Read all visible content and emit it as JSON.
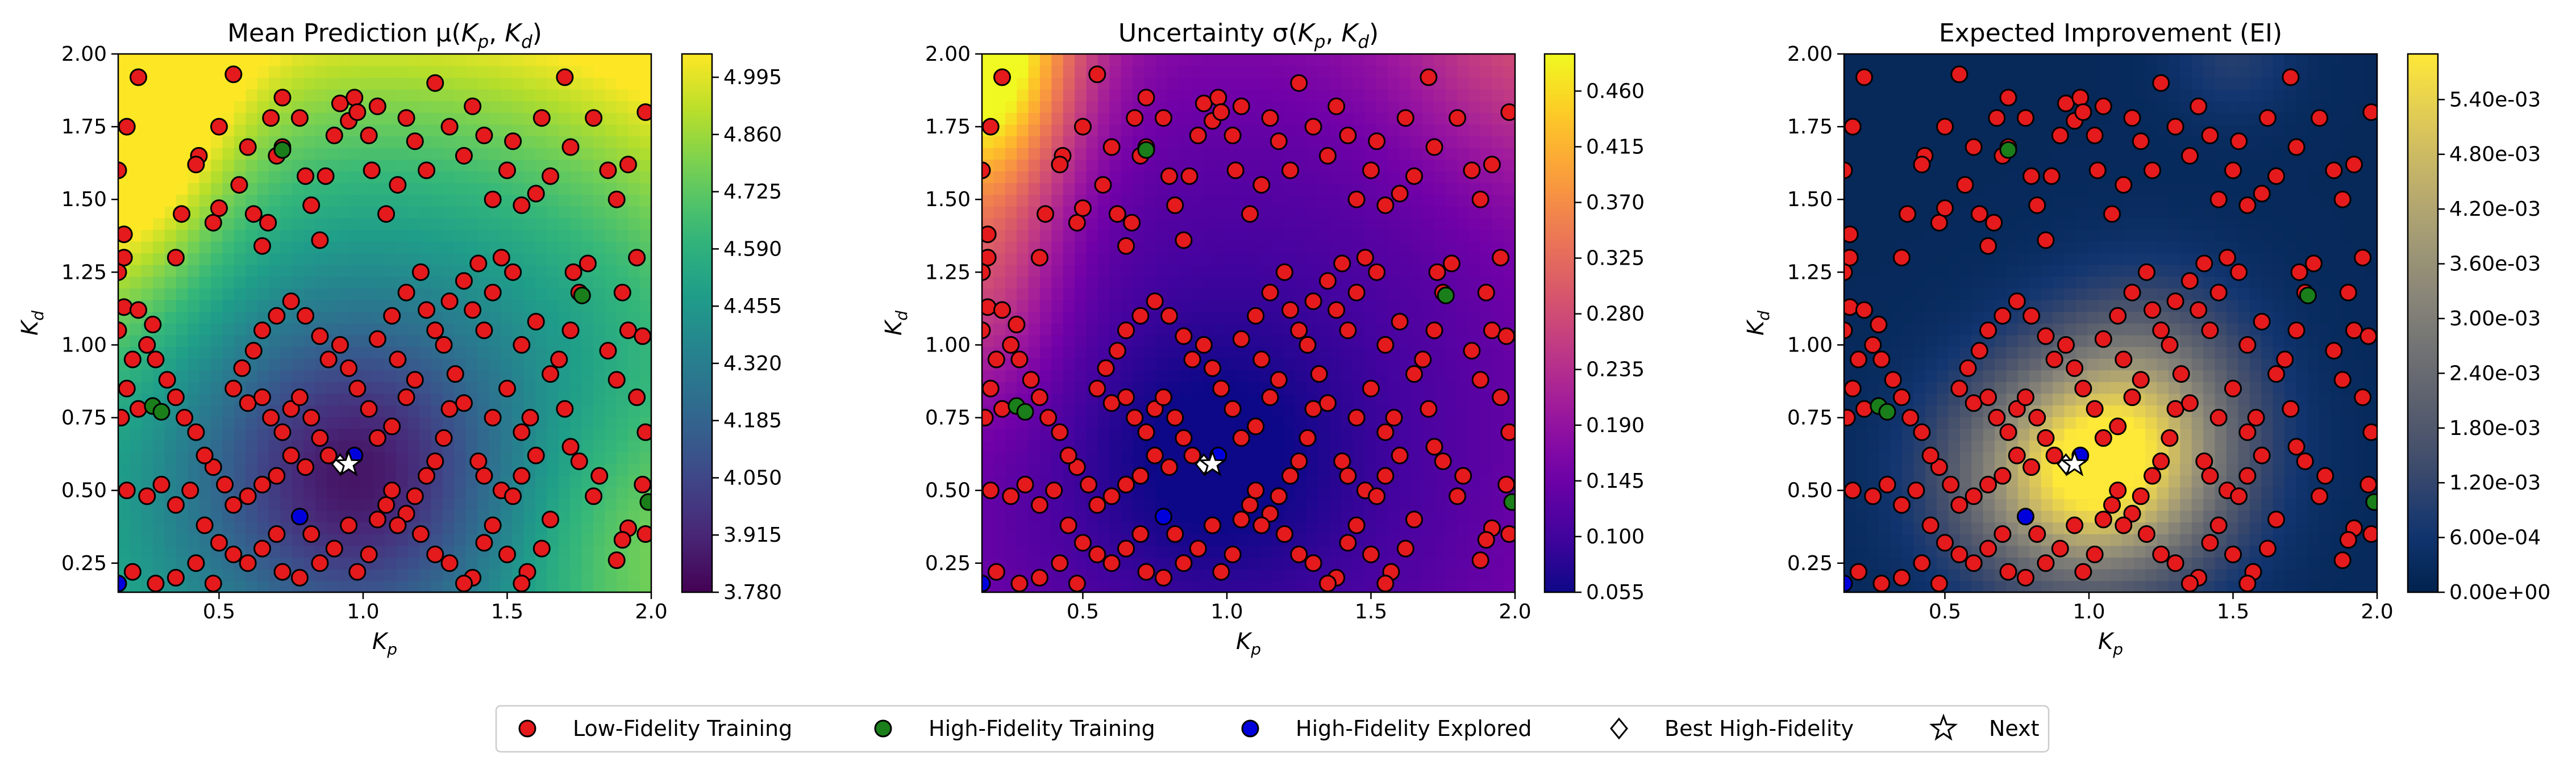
{
  "chart_data": [
    {
      "type": "heatmap",
      "title": "Mean Prediction μ(K_p, K_d)",
      "xlabel": "K_p",
      "ylabel": "K_d",
      "xlim": [
        0.15,
        2.0
      ],
      "ylim": [
        0.15,
        2.0
      ],
      "xticks": [
        "0.5",
        "1.0",
        "1.5",
        "2.0"
      ],
      "yticks": [
        "0.25",
        "0.50",
        "0.75",
        "1.00",
        "1.25",
        "1.50",
        "1.75",
        "2.00"
      ],
      "colormap": "viridis",
      "colorbar_range": [
        3.78,
        5.05
      ],
      "colorbar_ticks": [
        "3.780",
        "3.915",
        "4.050",
        "4.185",
        "4.320",
        "4.455",
        "4.590",
        "4.725",
        "4.860",
        "4.995"
      ]
    },
    {
      "type": "heatmap",
      "title": "Uncertainty σ(K_p, K_d)",
      "xlabel": "K_p",
      "ylabel": "K_d",
      "xlim": [
        0.15,
        2.0
      ],
      "ylim": [
        0.15,
        2.0
      ],
      "xticks": [
        "0.5",
        "1.0",
        "1.5",
        "2.0"
      ],
      "yticks": [
        "0.25",
        "0.50",
        "0.75",
        "1.00",
        "1.25",
        "1.50",
        "1.75",
        "2.00"
      ],
      "colormap": "plasma",
      "colorbar_range": [
        0.055,
        0.49
      ],
      "colorbar_ticks": [
        "0.055",
        "0.100",
        "0.145",
        "0.190",
        "0.235",
        "0.280",
        "0.325",
        "0.370",
        "0.415",
        "0.460"
      ]
    },
    {
      "type": "heatmap",
      "title": "Expected Improvement (EI)",
      "xlabel": "K_p",
      "ylabel": "K_d",
      "xlim": [
        0.15,
        2.0
      ],
      "ylim": [
        0.15,
        2.0
      ],
      "xticks": [
        "0.5",
        "1.0",
        "1.5",
        "2.0"
      ],
      "yticks": [
        "0.25",
        "0.50",
        "0.75",
        "1.00",
        "1.25",
        "1.50",
        "1.75",
        "2.00"
      ],
      "colormap": "cividis",
      "colorbar_range": [
        0.0,
        0.0059
      ],
      "colorbar_ticks": [
        "0.00e+00",
        "6.00e-04",
        "1.20e-03",
        "1.80e-03",
        "2.40e-03",
        "3.00e-03",
        "3.60e-03",
        "4.20e-03",
        "4.80e-03",
        "5.40e-03"
      ]
    }
  ],
  "points": {
    "low_fidelity": [
      [
        0.22,
        1.92
      ],
      [
        0.18,
        1.75
      ],
      [
        0.15,
        1.6
      ],
      [
        0.17,
        1.38
      ],
      [
        0.17,
        1.3
      ],
      [
        0.15,
        1.25
      ],
      [
        0.17,
        1.13
      ],
      [
        0.15,
        1.05
      ],
      [
        0.22,
        1.12
      ],
      [
        0.27,
        1.07
      ],
      [
        0.35,
        1.3
      ],
      [
        0.37,
        1.45
      ],
      [
        0.43,
        1.65
      ],
      [
        0.42,
        1.62
      ],
      [
        0.48,
        1.42
      ],
      [
        0.5,
        1.47
      ],
      [
        0.5,
        1.75
      ],
      [
        0.55,
        1.93
      ],
      [
        0.57,
        1.55
      ],
      [
        0.6,
        1.68
      ],
      [
        0.62,
        1.45
      ],
      [
        0.65,
        1.34
      ],
      [
        0.67,
        1.42
      ],
      [
        0.7,
        1.65
      ],
      [
        0.72,
        1.68
      ],
      [
        0.68,
        1.78
      ],
      [
        0.72,
        1.85
      ],
      [
        0.78,
        1.78
      ],
      [
        0.8,
        1.58
      ],
      [
        0.82,
        1.48
      ],
      [
        0.85,
        1.36
      ],
      [
        0.87,
        1.58
      ],
      [
        0.9,
        1.72
      ],
      [
        0.92,
        1.83
      ],
      [
        0.95,
        1.77
      ],
      [
        0.97,
        1.85
      ],
      [
        0.98,
        1.8
      ],
      [
        1.02,
        1.72
      ],
      [
        1.05,
        1.82
      ],
      [
        1.03,
        1.6
      ],
      [
        1.08,
        1.45
      ],
      [
        1.12,
        1.55
      ],
      [
        1.15,
        1.78
      ],
      [
        1.18,
        1.7
      ],
      [
        1.22,
        1.6
      ],
      [
        1.25,
        1.9
      ],
      [
        1.3,
        1.75
      ],
      [
        1.35,
        1.65
      ],
      [
        1.38,
        1.82
      ],
      [
        1.42,
        1.72
      ],
      [
        1.45,
        1.5
      ],
      [
        1.5,
        1.6
      ],
      [
        1.52,
        1.7
      ],
      [
        1.55,
        1.48
      ],
      [
        1.6,
        1.52
      ],
      [
        1.62,
        1.78
      ],
      [
        1.65,
        1.58
      ],
      [
        1.7,
        1.92
      ],
      [
        1.72,
        1.68
      ],
      [
        1.8,
        1.78
      ],
      [
        1.85,
        1.6
      ],
      [
        1.88,
        1.5
      ],
      [
        1.92,
        1.62
      ],
      [
        1.98,
        1.8
      ],
      [
        1.95,
        1.3
      ],
      [
        1.9,
        1.18
      ],
      [
        1.92,
        1.05
      ],
      [
        1.97,
        1.03
      ],
      [
        1.85,
        0.98
      ],
      [
        1.88,
        0.88
      ],
      [
        1.95,
        0.82
      ],
      [
        1.98,
        0.7
      ],
      [
        1.97,
        0.52
      ],
      [
        1.92,
        0.37
      ],
      [
        1.98,
        0.35
      ],
      [
        1.9,
        0.33
      ],
      [
        1.88,
        0.26
      ],
      [
        1.8,
        0.48
      ],
      [
        1.82,
        0.55
      ],
      [
        1.75,
        0.6
      ],
      [
        1.7,
        0.78
      ],
      [
        1.72,
        0.65
      ],
      [
        1.65,
        0.9
      ],
      [
        1.68,
        0.95
      ],
      [
        1.72,
        1.05
      ],
      [
        1.75,
        1.18
      ],
      [
        1.78,
        1.28
      ],
      [
        1.73,
        1.25
      ],
      [
        1.6,
        1.08
      ],
      [
        1.55,
        1.0
      ],
      [
        1.58,
        0.75
      ],
      [
        1.55,
        0.7
      ],
      [
        1.5,
        0.85
      ],
      [
        1.45,
        0.75
      ],
      [
        1.4,
        0.6
      ],
      [
        1.42,
        0.55
      ],
      [
        1.48,
        0.5
      ],
      [
        1.52,
        0.48
      ],
      [
        1.55,
        0.55
      ],
      [
        1.6,
        0.62
      ],
      [
        1.65,
        0.4
      ],
      [
        1.62,
        0.3
      ],
      [
        1.57,
        0.22
      ],
      [
        1.55,
        0.18
      ],
      [
        1.5,
        0.28
      ],
      [
        1.45,
        0.38
      ],
      [
        1.42,
        0.32
      ],
      [
        1.38,
        0.2
      ],
      [
        1.35,
        0.18
      ],
      [
        1.3,
        0.25
      ],
      [
        1.25,
        0.28
      ],
      [
        1.2,
        0.35
      ],
      [
        1.15,
        0.42
      ],
      [
        1.18,
        0.48
      ],
      [
        1.12,
        0.38
      ],
      [
        1.08,
        0.45
      ],
      [
        1.05,
        0.4
      ],
      [
        1.1,
        0.5
      ],
      [
        1.22,
        0.55
      ],
      [
        1.25,
        0.6
      ],
      [
        1.28,
        0.68
      ],
      [
        1.3,
        0.78
      ],
      [
        1.35,
        0.8
      ],
      [
        1.32,
        0.9
      ],
      [
        1.28,
        1.0
      ],
      [
        1.25,
        1.05
      ],
      [
        1.22,
        1.12
      ],
      [
        1.3,
        1.15
      ],
      [
        1.35,
        1.22
      ],
      [
        1.4,
        1.28
      ],
      [
        1.48,
        1.3
      ],
      [
        1.52,
        1.25
      ],
      [
        1.45,
        1.18
      ],
      [
        1.42,
        1.05
      ],
      [
        1.38,
        1.12
      ],
      [
        1.2,
        1.25
      ],
      [
        1.15,
        1.18
      ],
      [
        1.1,
        1.1
      ],
      [
        1.05,
        1.02
      ],
      [
        1.12,
        0.95
      ],
      [
        1.18,
        0.88
      ],
      [
        1.15,
        0.82
      ],
      [
        1.1,
        0.72
      ],
      [
        1.05,
        0.68
      ],
      [
        1.02,
        0.78
      ],
      [
        0.98,
        0.85
      ],
      [
        0.95,
        0.92
      ],
      [
        0.92,
        1.0
      ],
      [
        0.88,
        0.95
      ],
      [
        0.85,
        1.03
      ],
      [
        0.8,
        1.1
      ],
      [
        0.75,
        1.15
      ],
      [
        0.7,
        1.1
      ],
      [
        0.65,
        1.05
      ],
      [
        0.62,
        0.98
      ],
      [
        0.58,
        0.92
      ],
      [
        0.55,
        0.85
      ],
      [
        0.6,
        0.8
      ],
      [
        0.65,
        0.82
      ],
      [
        0.68,
        0.75
      ],
      [
        0.72,
        0.7
      ],
      [
        0.75,
        0.78
      ],
      [
        0.78,
        0.82
      ],
      [
        0.82,
        0.75
      ],
      [
        0.85,
        0.68
      ],
      [
        0.88,
        0.62
      ],
      [
        0.8,
        0.58
      ],
      [
        0.75,
        0.62
      ],
      [
        0.7,
        0.55
      ],
      [
        0.65,
        0.52
      ],
      [
        0.6,
        0.48
      ],
      [
        0.55,
        0.45
      ],
      [
        0.52,
        0.52
      ],
      [
        0.48,
        0.58
      ],
      [
        0.45,
        0.62
      ],
      [
        0.42,
        0.7
      ],
      [
        0.38,
        0.75
      ],
      [
        0.35,
        0.82
      ],
      [
        0.32,
        0.88
      ],
      [
        0.28,
        0.95
      ],
      [
        0.25,
        1.0
      ],
      [
        0.2,
        0.95
      ],
      [
        0.18,
        0.85
      ],
      [
        0.16,
        0.75
      ],
      [
        0.22,
        0.78
      ],
      [
        0.18,
        0.5
      ],
      [
        0.25,
        0.48
      ],
      [
        0.3,
        0.52
      ],
      [
        0.35,
        0.45
      ],
      [
        0.4,
        0.5
      ],
      [
        0.45,
        0.38
      ],
      [
        0.5,
        0.32
      ],
      [
        0.55,
        0.28
      ],
      [
        0.6,
        0.25
      ],
      [
        0.65,
        0.3
      ],
      [
        0.7,
        0.35
      ],
      [
        0.72,
        0.22
      ],
      [
        0.78,
        0.2
      ],
      [
        0.85,
        0.25
      ],
      [
        0.82,
        0.35
      ],
      [
        0.9,
        0.3
      ],
      [
        0.95,
        0.38
      ],
      [
        0.98,
        0.22
      ],
      [
        1.02,
        0.28
      ],
      [
        0.2,
        0.22
      ],
      [
        0.28,
        0.18
      ],
      [
        0.35,
        0.2
      ],
      [
        0.42,
        0.25
      ],
      [
        0.48,
        0.18
      ]
    ],
    "high_fidelity_training": [
      [
        0.72,
        1.67
      ],
      [
        1.76,
        1.17
      ],
      [
        0.27,
        0.79
      ],
      [
        0.3,
        0.77
      ],
      [
        1.99,
        0.46
      ]
    ],
    "high_fidelity_explored": [
      [
        0.97,
        0.62
      ],
      [
        0.78,
        0.41
      ],
      [
        0.15,
        0.18
      ]
    ],
    "best_high_fidelity": [
      0.92,
      0.59
    ],
    "next": [
      0.95,
      0.59
    ]
  },
  "legend": [
    {
      "label": "Low-Fidelity Training",
      "color": "#e41a1c",
      "marker": "circle"
    },
    {
      "label": "High-Fidelity Training",
      "color": "#1a7f1a",
      "marker": "circle"
    },
    {
      "label": "High-Fidelity Explored",
      "color": "#0000dd",
      "marker": "circle"
    },
    {
      "label": "Best High-Fidelity",
      "color": "#ffffff",
      "marker": "diamond"
    },
    {
      "label": "Next",
      "color": "#ffffff",
      "marker": "star"
    }
  ]
}
